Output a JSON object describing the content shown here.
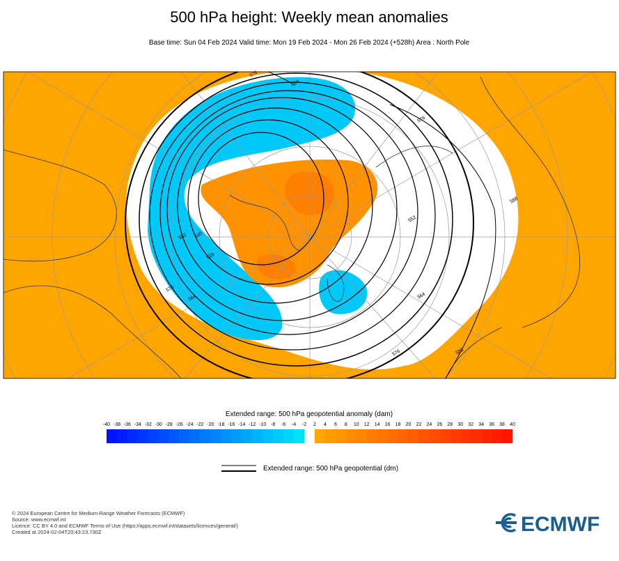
{
  "header": {
    "title": "500 hPa height: Weekly mean anomalies",
    "subtitle": "Base time: Sun 04 Feb 2024 Valid time: Mon 19 Feb 2024 - Mon 26 Feb 2024 (+528h) Area : North Pole"
  },
  "map": {
    "contour_labels": [
      "576",
      "564",
      "576",
      "552",
      "564",
      "576",
      "588",
      "588",
      "552",
      "540",
      "528",
      "576",
      "564"
    ]
  },
  "colorbar": {
    "title": "Extended range: 500 hPa geopotential anomaly (dam)",
    "negative_ticks": [
      -40,
      -38,
      -36,
      -34,
      -32,
      -30,
      -28,
      -26,
      -24,
      -22,
      -20,
      -18,
      -16,
      -14,
      -12,
      -10,
      -8,
      -6,
      -4,
      -2
    ],
    "positive_ticks": [
      2,
      4,
      6,
      8,
      10,
      12,
      14,
      16,
      18,
      20,
      22,
      24,
      26,
      28,
      30,
      32,
      34,
      36,
      38,
      40
    ]
  },
  "line_legend": {
    "label": "Extended range: 500 hPa geopotential (dm)"
  },
  "footer": {
    "lines": [
      "© 2024 European Centre for Medium-Range Weather Forecasts (ECMWF)",
      "Source: www.ecmwf.int",
      "Licence: CC BY 4.0 and ECMWF Terms of Use (https://apps.ecmwf.int/datasets/licences/general/)",
      "Created at 2024-02-04T20:43:23.730Z"
    ]
  },
  "logo": "ECMWF"
}
